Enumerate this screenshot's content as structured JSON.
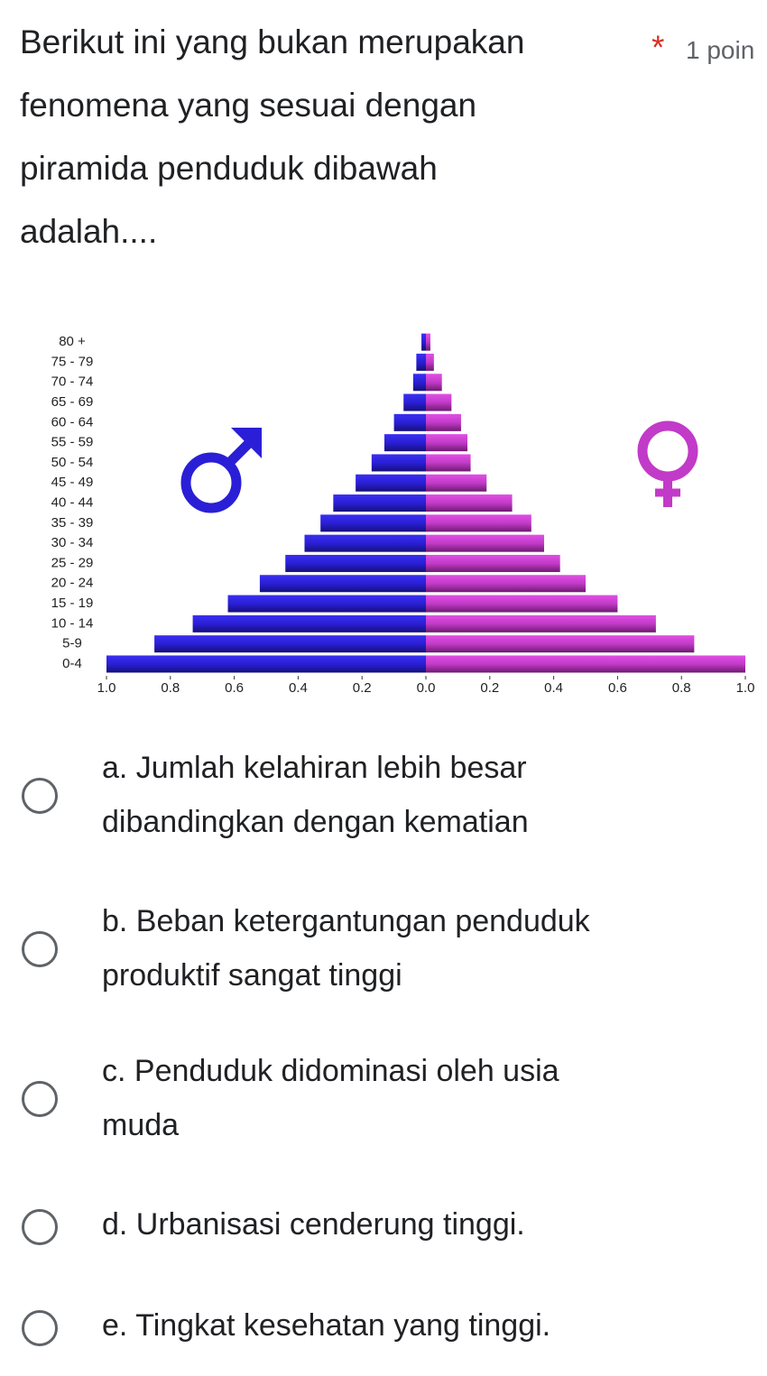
{
  "question": {
    "lines": [
      "Berikut ini yang bukan merupakan",
      "fenomena yang sesuai dengan",
      "piramida penduduk dibawah",
      "adalah...."
    ],
    "required": "*",
    "points": "1 poin"
  },
  "chart": {
    "type": "population-pyramid",
    "categories": [
      "80 +",
      "75 - 79",
      "70 - 74",
      "65 - 69",
      "60 - 64",
      "55 - 59",
      "50 - 54",
      "45 - 49",
      "40 - 44",
      "35 - 39",
      "30 - 34",
      "25 - 29",
      "20 - 24",
      "15 - 19",
      "10 - 14",
      "5-9",
      "0-4"
    ],
    "series": [
      {
        "side": "left",
        "color": "#2a1fd6",
        "values": [
          0.014,
          0.03,
          0.04,
          0.07,
          0.1,
          0.13,
          0.17,
          0.22,
          0.29,
          0.33,
          0.38,
          0.44,
          0.52,
          0.62,
          0.73,
          0.85,
          1.0
        ]
      },
      {
        "side": "right",
        "color": "#c23ac8",
        "values": [
          0.014,
          0.025,
          0.05,
          0.08,
          0.11,
          0.13,
          0.14,
          0.19,
          0.27,
          0.33,
          0.37,
          0.42,
          0.5,
          0.6,
          0.72,
          0.84,
          1.0
        ]
      }
    ],
    "xlim": [
      -1.0,
      1.0
    ],
    "xticks": [
      {
        "value": -1.0,
        "label": "1.0"
      },
      {
        "value": -0.8,
        "label": "0.8"
      },
      {
        "value": -0.6,
        "label": "0.6"
      },
      {
        "value": -0.4,
        "label": "0.4"
      },
      {
        "value": -0.2,
        "label": "0.2"
      },
      {
        "value": 0,
        "label": "0.0"
      },
      {
        "value": 0.2,
        "label": "0.2"
      },
      {
        "value": 0.4,
        "label": "0.4"
      },
      {
        "value": 0.6,
        "label": "0.6"
      },
      {
        "value": 0.8,
        "label": "0.8"
      },
      {
        "value": 1.0,
        "label": "1.0"
      }
    ]
  },
  "options": [
    {
      "lines": [
        "a. Jumlah kelahiran lebih besar",
        "dibandingkan dengan kematian"
      ]
    },
    {
      "lines": [
        "b. Beban ketergantungan penduduk",
        "produktif sangat tinggi"
      ]
    },
    {
      "lines": [
        "c. Penduduk didominasi oleh usia",
        "muda"
      ]
    },
    {
      "lines": [
        "d. Urbanisasi cenderung tinggi."
      ]
    },
    {
      "lines": [
        "e. Tingkat kesehatan yang tinggi."
      ]
    }
  ]
}
